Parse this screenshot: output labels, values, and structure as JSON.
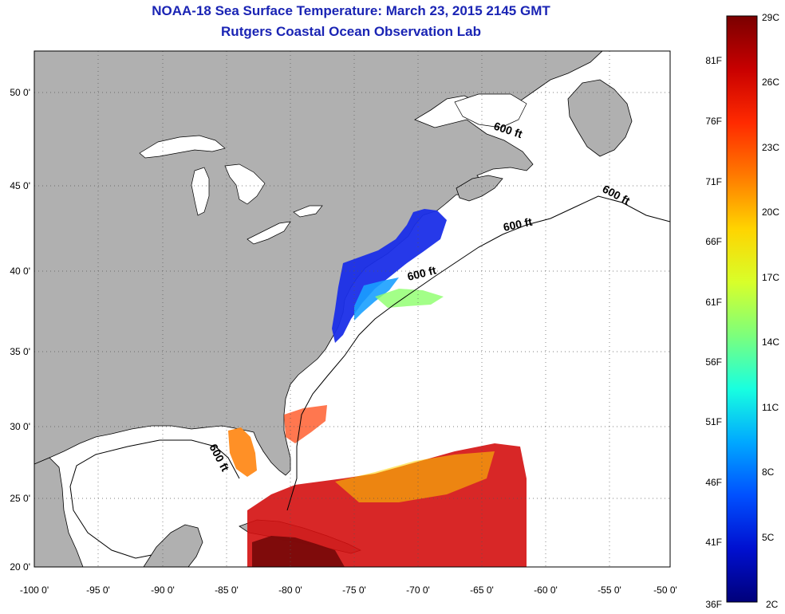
{
  "title": {
    "line1": "NOAA-18 Sea Surface Temperature:  March 23, 2015 2145 GMT",
    "line2": "Rutgers Coastal Ocean Observation Lab"
  },
  "map": {
    "lat_ticks": [
      "50 0'",
      "45 0'",
      "40 0'",
      "35 0'",
      "30 0'",
      "25 0'",
      "20 0'"
    ],
    "lon_ticks": [
      "-100 0'",
      "-95 0'",
      "-90 0'",
      "-85 0'",
      "-80 0'",
      "-75 0'",
      "-70 0'",
      "-65 0'",
      "-60 0'",
      "-55 0'",
      "-50 0'"
    ],
    "contour_label": "600 ft",
    "colors": {
      "land": "#b0b0b0",
      "water": "#ffffff",
      "coast": "#000000"
    }
  },
  "colorbar": {
    "celsius_labels": [
      "29C",
      "26C",
      "23C",
      "20C",
      "17C",
      "14C",
      "11C",
      "8C",
      "5C",
      "2C"
    ],
    "fahrenheit_labels": [
      "81F",
      "76F",
      "71F",
      "66F",
      "61F",
      "56F",
      "51F",
      "46F",
      "41F",
      "36F"
    ],
    "gradient": [
      "#7a0000",
      "#c80000",
      "#ff2a00",
      "#ff7a00",
      "#ffd400",
      "#d8ff2a",
      "#7cff7c",
      "#18ffe0",
      "#00a8ff",
      "#0050ff",
      "#0010d0",
      "#00007a"
    ]
  }
}
